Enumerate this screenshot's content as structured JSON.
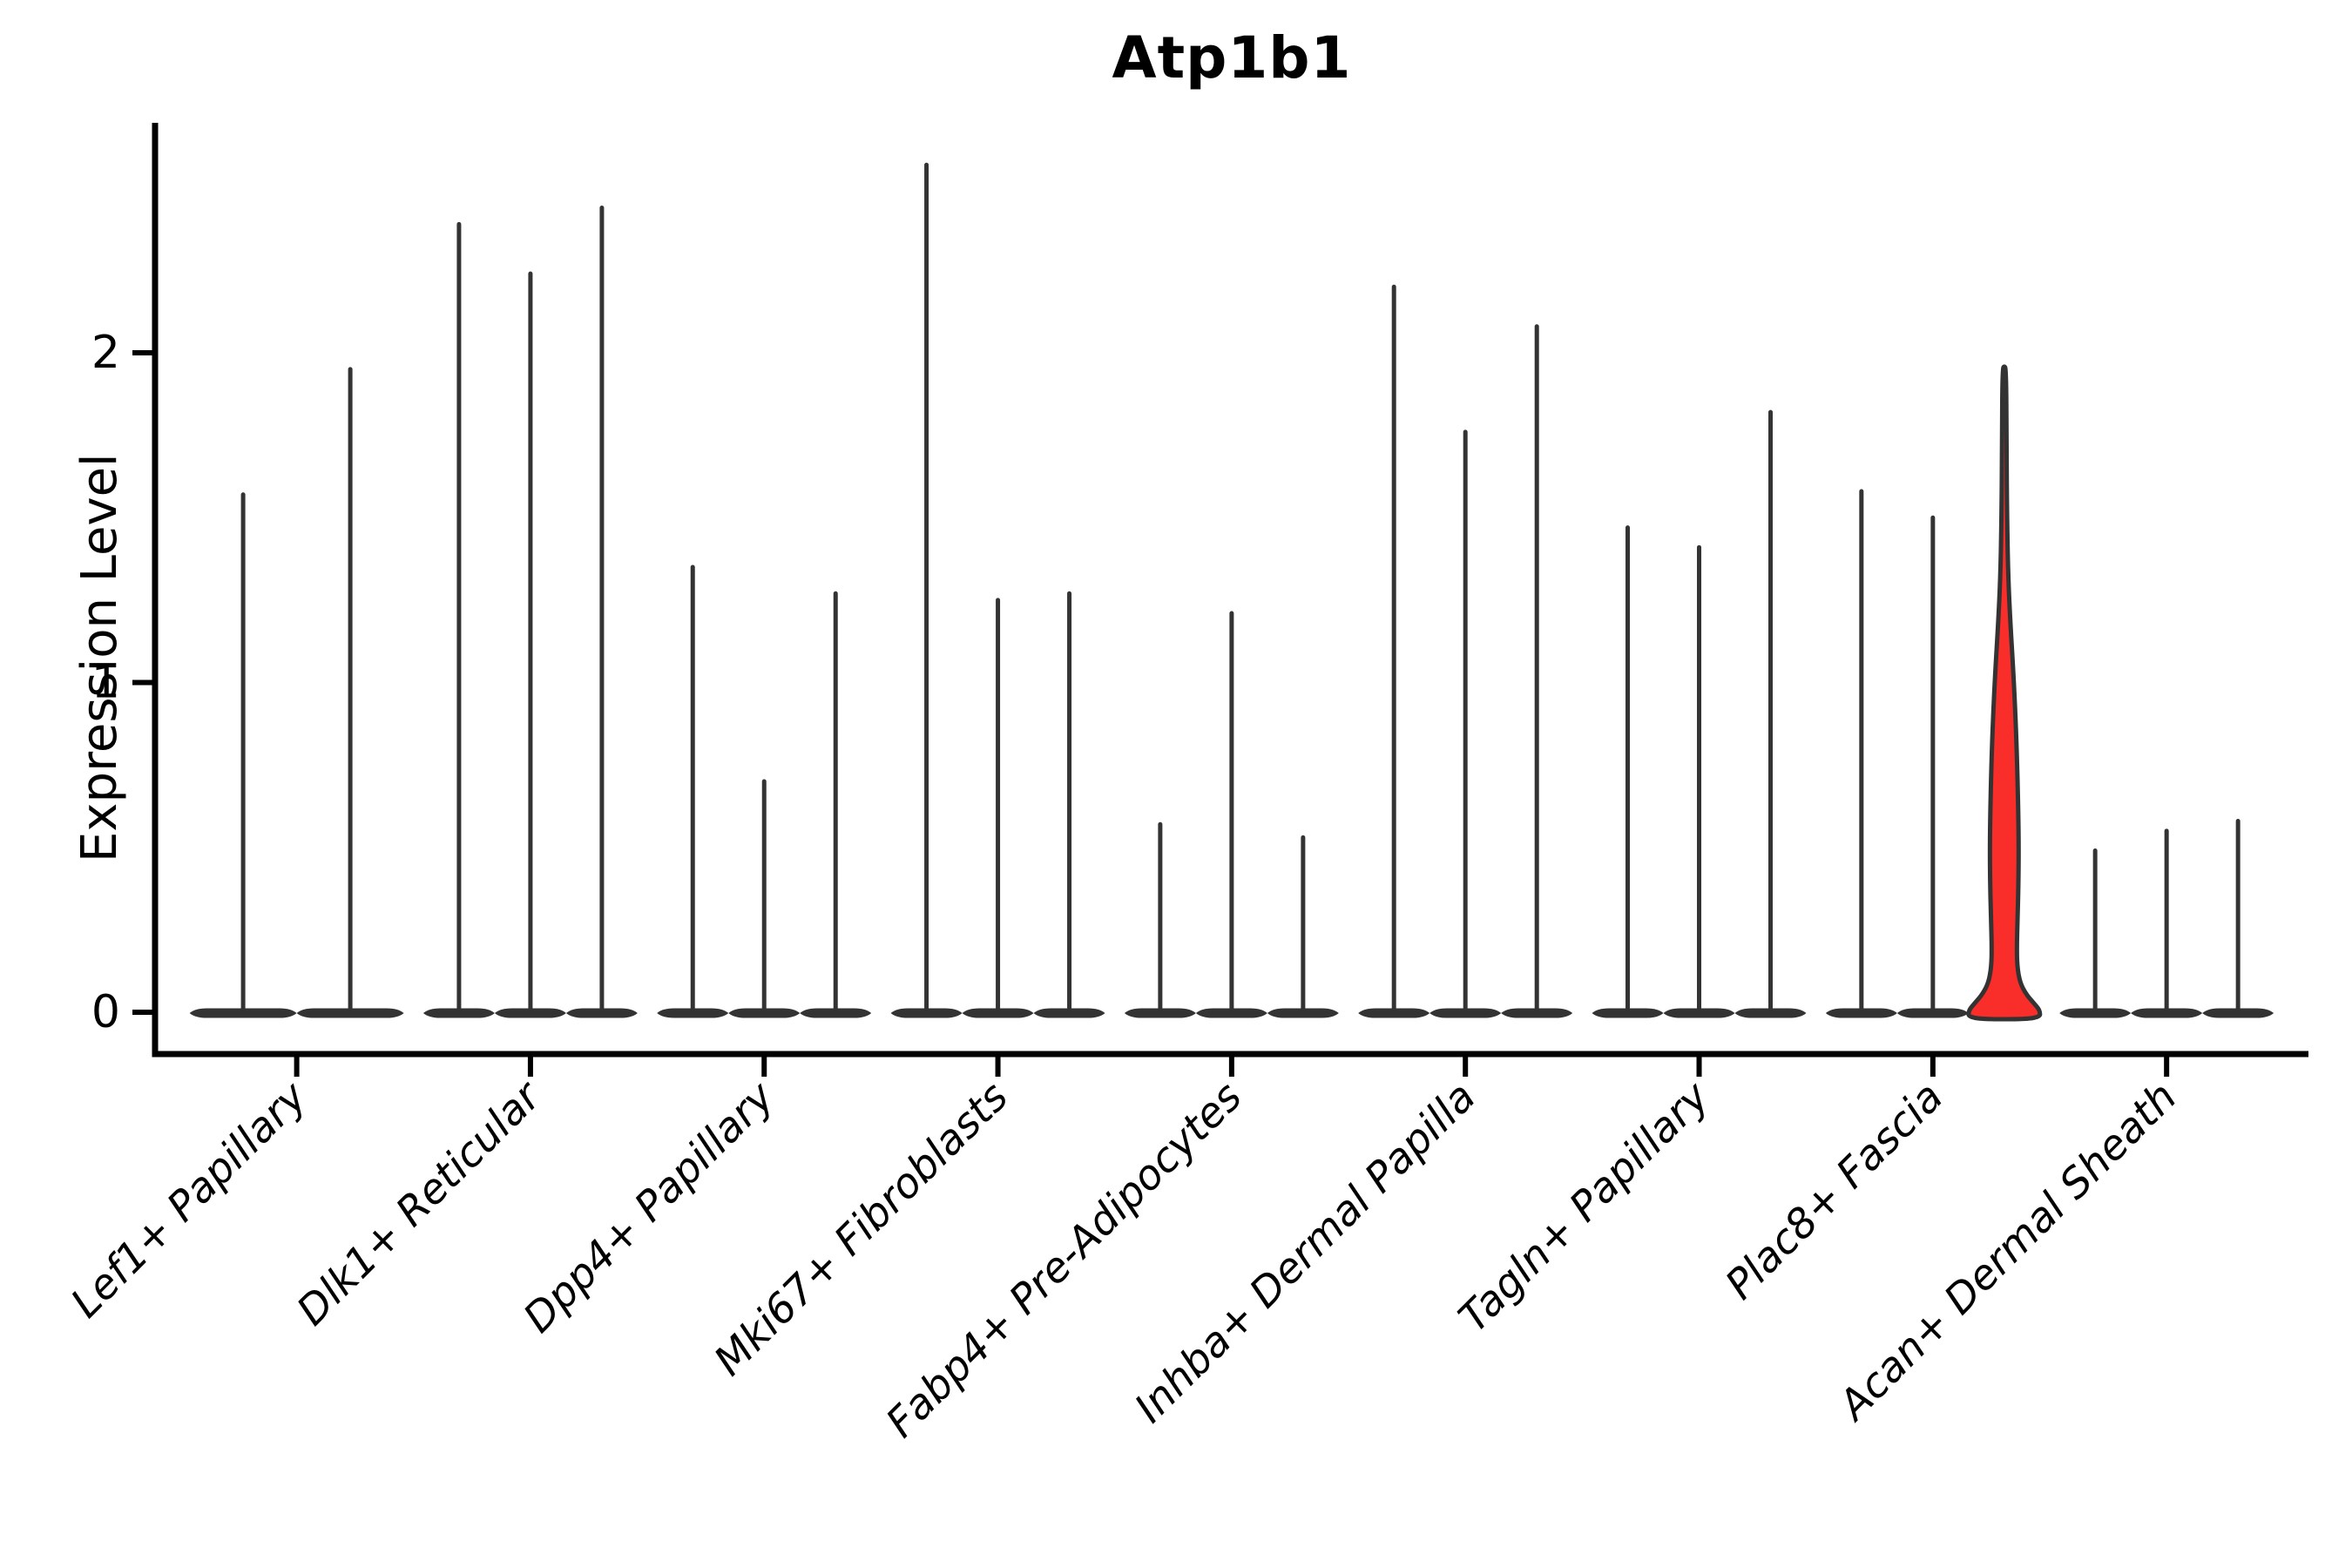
{
  "figure": {
    "title": "Atp1b1",
    "y_axis": {
      "label": "Expression Level",
      "tick_labels": [
        "0",
        "1",
        "2"
      ]
    }
  },
  "chart_data": {
    "type": "violin",
    "title": "Atp1b1",
    "ylabel": "Expression Level",
    "xlabel": "",
    "yticks": [
      0,
      1,
      2
    ],
    "ylim": [
      -0.13,
      2.7
    ],
    "grid": false,
    "legend": "none",
    "categories": [
      "Lef1+ Papillary",
      "Dlk1+ Reticular",
      "Dpp4+ Papillary",
      "Mki67+ Fibroblasts",
      "Fabp4+ Pre-Adipocytes",
      "Inhba+ Dermal Papilla",
      "Tagln+ Papillary",
      "Plac8+ Fascia",
      "Acan+ Dermal Sheath"
    ],
    "groups": [
      {
        "category": "Lef1+ Papillary",
        "violin_maxima": [
          1.57,
          1.95
        ]
      },
      {
        "category": "Dlk1+ Reticular",
        "violin_maxima": [
          2.39,
          2.24,
          2.44
        ]
      },
      {
        "category": "Dpp4+ Papillary",
        "violin_maxima": [
          1.35,
          0.7,
          1.27
        ]
      },
      {
        "category": "Mki67+ Fibroblasts",
        "violin_maxima": [
          2.57,
          1.25,
          1.27
        ]
      },
      {
        "category": "Fabp4+ Pre-Adipocytes",
        "violin_maxima": [
          0.57,
          1.21,
          0.53
        ]
      },
      {
        "category": "Inhba+ Dermal Papilla",
        "violin_maxima": [
          2.2,
          1.76,
          2.08
        ]
      },
      {
        "category": "Tagln+ Papillary",
        "violin_maxima": [
          1.47,
          1.41,
          1.82
        ]
      },
      {
        "category": "Plac8+ Fascia",
        "violin_maxima": [
          1.58,
          1.5,
          1.95
        ]
      },
      {
        "category": "Acan+ Dermal Sheath",
        "violin_maxima": [
          0.49,
          0.55,
          0.58
        ]
      }
    ],
    "highlight": {
      "group_index": 7,
      "violin_index": 2,
      "fill_color": "#f92d2a",
      "max": 1.95,
      "profile_value_halfwidth": [
        [
          0.0,
          41
        ],
        [
          0.012,
          39
        ],
        [
          0.03,
          33
        ],
        [
          0.055,
          25
        ],
        [
          0.09,
          18
        ],
        [
          0.14,
          14.8
        ],
        [
          0.2,
          14.4
        ],
        [
          0.28,
          15.2
        ],
        [
          0.38,
          16.2
        ],
        [
          0.5,
          16.6
        ],
        [
          0.62,
          16.0
        ],
        [
          0.78,
          14.5
        ],
        [
          0.92,
          12.5
        ],
        [
          1.05,
          10.0
        ],
        [
          1.18,
          7.0
        ],
        [
          1.32,
          4.5
        ],
        [
          1.5,
          3.2
        ],
        [
          1.7,
          2.6
        ],
        [
          1.95,
          2.2
        ]
      ]
    },
    "colors": {
      "violin_line": "#333333",
      "axis": "#000000",
      "background": "#ffffff"
    }
  }
}
